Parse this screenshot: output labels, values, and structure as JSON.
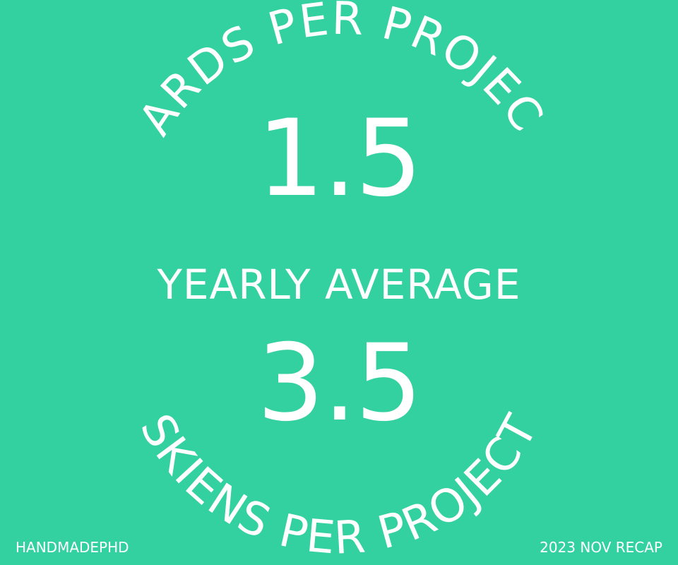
{
  "top_arc_label": "YARDS PER PROJECT",
  "top_value": "1.5",
  "middle_label": "YEARLY AVERAGE",
  "bottom_value": "3.5",
  "bottom_arc_label": "SKIENS PER PROJECT",
  "footer": {
    "brand": "HANDMADEPHD",
    "recap": "2023 NOV RECAP"
  },
  "colors": {
    "background": "#34d1a0",
    "text": "#ffffff"
  }
}
